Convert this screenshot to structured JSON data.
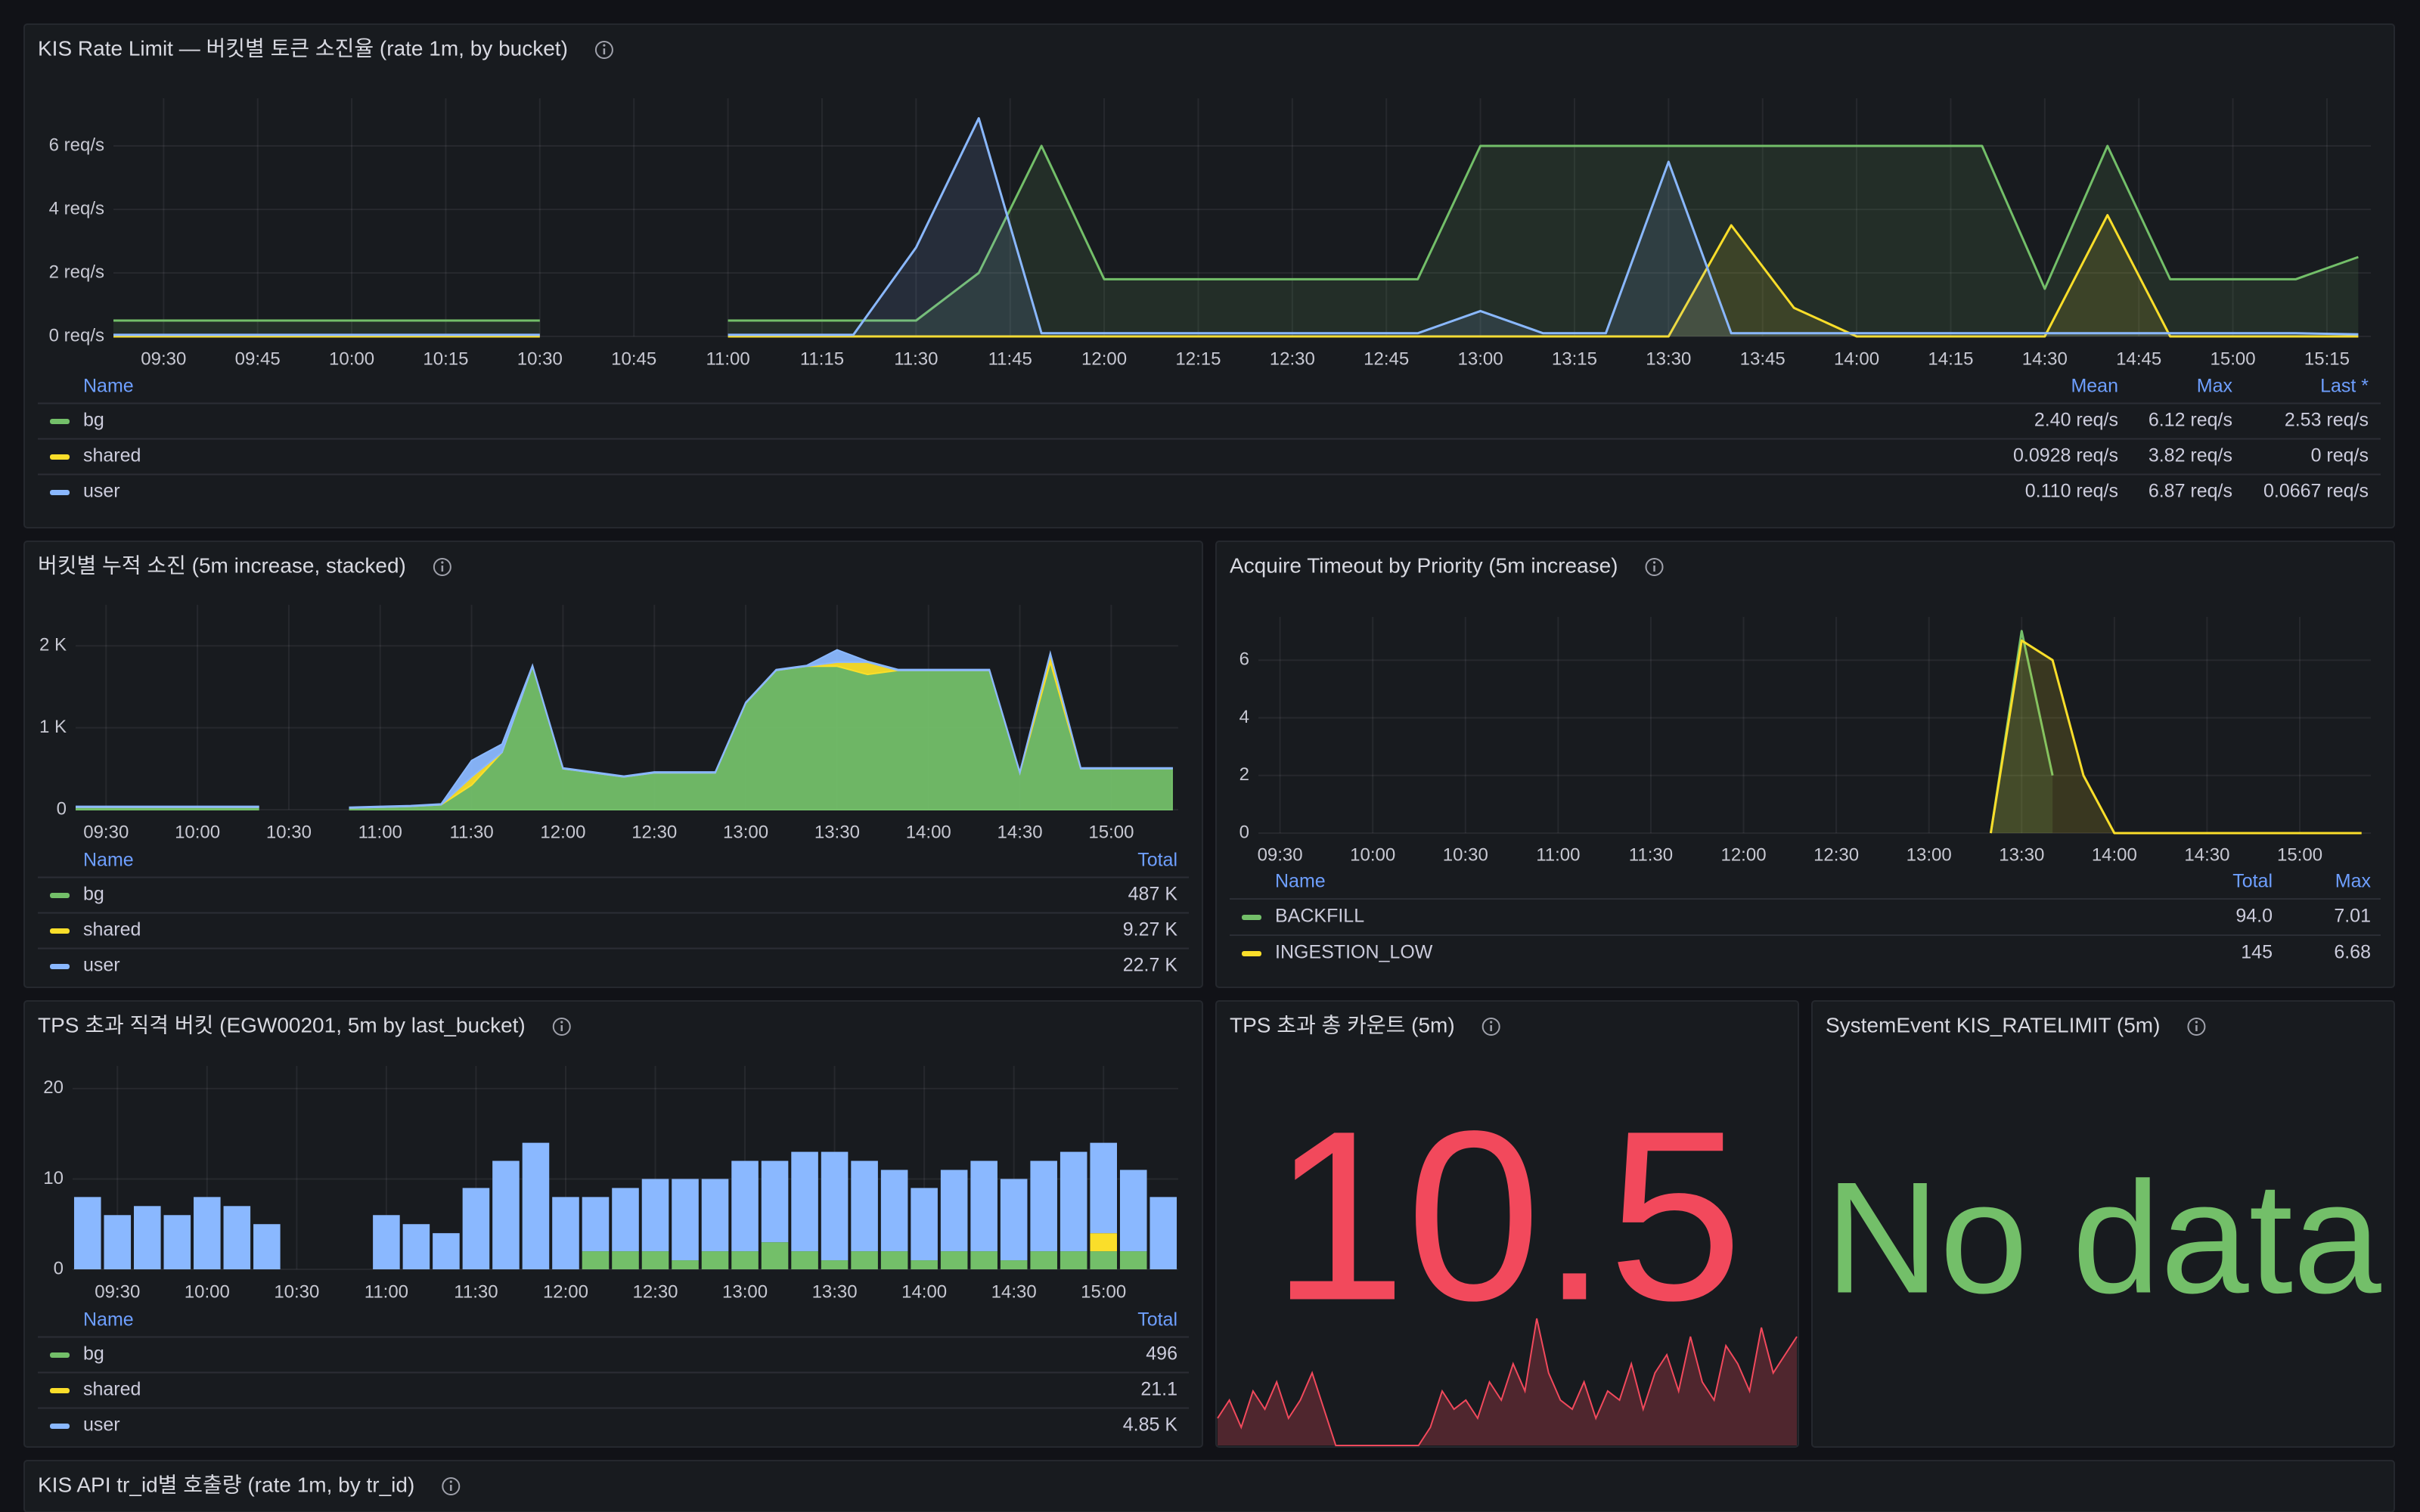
{
  "panels": [
    {
      "title": "KIS Rate Limit — 버킷별 토큰 소진율 (rate 1m, by bucket)",
      "type": "line",
      "fill_opacity": 0.12,
      "x": [
        "09:20",
        "09:30",
        "09:40",
        "09:50",
        "10:00",
        "10:10",
        "10:20",
        "10:30",
        "10:40",
        "10:50",
        "11:00",
        "11:10",
        "11:20",
        "11:30",
        "11:40",
        "11:50",
        "12:00",
        "12:10",
        "12:20",
        "12:30",
        "12:40",
        "12:50",
        "13:00",
        "13:10",
        "13:20",
        "13:30",
        "13:40",
        "13:50",
        "14:00",
        "14:10",
        "14:20",
        "14:30",
        "14:40",
        "14:50",
        "15:00",
        "15:10",
        "15:20"
      ],
      "xlim": [
        "09:22",
        "15:22"
      ],
      "xticks": [
        "09:30",
        "09:45",
        "10:00",
        "10:15",
        "10:30",
        "10:45",
        "11:00",
        "11:15",
        "11:30",
        "11:45",
        "12:00",
        "12:15",
        "12:30",
        "12:45",
        "13:00",
        "13:15",
        "13:30",
        "13:45",
        "14:00",
        "14:15",
        "14:30",
        "14:45",
        "15:00",
        "15:15"
      ],
      "ylim": [
        0,
        7.5
      ],
      "yticks": [
        {
          "value": 0,
          "label": "0 req/s"
        },
        {
          "value": 2,
          "label": "2 req/s"
        },
        {
          "value": 4,
          "label": "4 req/s"
        },
        {
          "value": 6,
          "label": "6 req/s"
        }
      ],
      "legend_name_header": "Name",
      "legend_columns": [
        "Mean",
        "Max",
        "Last *"
      ],
      "series": [
        {
          "name": "bg",
          "color": "#73bf69",
          "legend_values": [
            "2.40 req/s",
            "6.12 req/s",
            "2.53 req/s"
          ],
          "values": [
            0.5,
            0.5,
            0.5,
            0.5,
            0.5,
            0.5,
            0.5,
            0.5,
            null,
            null,
            0.5,
            0.5,
            0.5,
            0.5,
            2,
            6,
            1.8,
            1.8,
            1.8,
            1.8,
            1.8,
            1.8,
            6,
            6,
            6,
            6,
            6,
            6,
            6,
            6,
            6,
            1.5,
            6,
            1.8,
            1.8,
            1.8,
            2.5
          ]
        },
        {
          "name": "shared",
          "color": "#fade2a",
          "legend_values": [
            "0.0928 req/s",
            "3.82 req/s",
            "0 req/s"
          ],
          "values": [
            0,
            0,
            0,
            0,
            0,
            0,
            0,
            0,
            null,
            null,
            0,
            0,
            0,
            0,
            0,
            0,
            0,
            0,
            0,
            0,
            0,
            0,
            0,
            0,
            0,
            0,
            3.5,
            0.9,
            0,
            0,
            0,
            0,
            3.82,
            0,
            0,
            0,
            0
          ]
        },
        {
          "name": "user",
          "color": "#8ab8ff",
          "legend_values": [
            "0.110 req/s",
            "6.87 req/s",
            "0.0667 req/s"
          ],
          "values": [
            0.05,
            0.05,
            0.05,
            0.05,
            0.05,
            0.05,
            0.05,
            0.05,
            null,
            null,
            0.05,
            0.05,
            0.05,
            2.8,
            6.87,
            0.1,
            0.1,
            0.1,
            0.1,
            0.1,
            0.1,
            0.1,
            0.8,
            0.1,
            0.1,
            5.5,
            0.1,
            0.1,
            0.1,
            0.1,
            0.1,
            0.1,
            0.1,
            0.1,
            0.1,
            0.1,
            0.0667
          ]
        }
      ]
    },
    {
      "title": "버킷별 누적 소진 (5m increase, stacked)",
      "type": "stacked-area",
      "x": [
        "09:20",
        "09:30",
        "09:40",
        "09:50",
        "10:00",
        "10:10",
        "10:20",
        "10:30",
        "10:40",
        "10:50",
        "11:00",
        "11:10",
        "11:20",
        "11:30",
        "11:40",
        "11:50",
        "12:00",
        "12:10",
        "12:20",
        "12:30",
        "12:40",
        "12:50",
        "13:00",
        "13:10",
        "13:20",
        "13:30",
        "13:40",
        "13:50",
        "14:00",
        "14:10",
        "14:20",
        "14:30",
        "14:40",
        "14:50",
        "15:00",
        "15:10",
        "15:20"
      ],
      "xlim": [
        "09:20",
        "15:22"
      ],
      "xticks": [
        "09:30",
        "10:00",
        "10:30",
        "11:00",
        "11:30",
        "12:00",
        "12:30",
        "13:00",
        "13:30",
        "14:00",
        "14:30",
        "15:00"
      ],
      "ylim": [
        0,
        2500
      ],
      "yticks": [
        0,
        {
          "value": 1000,
          "label": "1 K"
        },
        {
          "value": 2000,
          "label": "2 K"
        }
      ],
      "legend_name_header": "Name",
      "legend_columns": [
        "Total"
      ],
      "series": [
        {
          "name": "bg",
          "color": "#73bf69",
          "legend_values": [
            "487 K"
          ],
          "values": [
            30,
            30,
            30,
            30,
            30,
            30,
            30,
            null,
            null,
            20,
            30,
            40,
            60,
            300,
            700,
            1750,
            500,
            450,
            400,
            450,
            450,
            450,
            1300,
            1700,
            1750,
            1750,
            1650,
            1700,
            1700,
            1700,
            1700,
            450,
            1800,
            500,
            500,
            500,
            500
          ]
        },
        {
          "name": "shared",
          "color": "#fade2a",
          "legend_values": [
            "9.27 K"
          ],
          "values": [
            0,
            0,
            0,
            0,
            0,
            0,
            0,
            null,
            null,
            0,
            0,
            0,
            0,
            100,
            0,
            0,
            0,
            0,
            0,
            0,
            0,
            0,
            0,
            0,
            0,
            50,
            150,
            0,
            0,
            0,
            0,
            0,
            100,
            0,
            0,
            0,
            0
          ]
        },
        {
          "name": "user",
          "color": "#8ab8ff",
          "legend_values": [
            "22.7 K"
          ],
          "values": [
            10,
            10,
            10,
            10,
            10,
            10,
            10,
            null,
            null,
            10,
            10,
            10,
            10,
            200,
            100,
            10,
            10,
            10,
            10,
            10,
            10,
            10,
            10,
            10,
            10,
            150,
            10,
            10,
            10,
            10,
            10,
            10,
            10,
            10,
            10,
            10,
            10
          ]
        }
      ]
    },
    {
      "title": "Acquire Timeout by Priority (5m increase)",
      "type": "line",
      "fill_opacity": 0.15,
      "x": [
        "09:20",
        "09:30",
        "09:40",
        "09:50",
        "10:00",
        "10:10",
        "10:20",
        "10:30",
        "10:40",
        "10:50",
        "11:00",
        "11:10",
        "11:20",
        "11:30",
        "11:40",
        "11:50",
        "12:00",
        "12:10",
        "12:20",
        "12:30",
        "12:40",
        "12:50",
        "13:00",
        "13:10",
        "13:20",
        "13:30",
        "13:40",
        "13:50",
        "14:00",
        "14:10",
        "14:20",
        "14:30",
        "14:40",
        "14:50",
        "15:00",
        "15:10",
        "15:20"
      ],
      "xlim": [
        "09:23",
        "15:23"
      ],
      "xticks": [
        "09:30",
        "10:00",
        "10:30",
        "11:00",
        "11:30",
        "12:00",
        "12:30",
        "13:00",
        "13:30",
        "14:00",
        "14:30",
        "15:00"
      ],
      "ylim": [
        0,
        7.5
      ],
      "yticks": [
        0,
        2,
        4,
        6
      ],
      "legend_name_header": "Name",
      "legend_columns": [
        "Total",
        "Max"
      ],
      "series": [
        {
          "name": "BACKFILL",
          "color": "#73bf69",
          "legend_values": [
            "94.0",
            "7.01"
          ],
          "values": [
            null,
            null,
            null,
            null,
            null,
            null,
            null,
            null,
            null,
            null,
            null,
            null,
            null,
            null,
            null,
            null,
            null,
            null,
            null,
            null,
            null,
            null,
            null,
            null,
            0,
            7.01,
            2,
            null,
            null,
            null,
            null,
            null,
            null,
            null,
            null,
            null,
            null
          ]
        },
        {
          "name": "INGESTION_LOW",
          "color": "#fade2a",
          "legend_values": [
            "145",
            "6.68"
          ],
          "values": [
            null,
            null,
            null,
            null,
            null,
            null,
            null,
            null,
            null,
            null,
            null,
            null,
            null,
            null,
            null,
            null,
            null,
            null,
            null,
            null,
            null,
            null,
            null,
            null,
            0,
            6.68,
            6,
            2,
            0,
            0,
            0,
            0,
            0,
            0,
            0,
            0,
            0
          ]
        }
      ]
    },
    {
      "title": "TPS 초과 직격 버킷 (EGW00201, 5m by last_bucket)",
      "type": "stacked-bar",
      "x": [
        "09:20",
        "09:30",
        "09:40",
        "09:50",
        "10:00",
        "10:10",
        "10:20",
        "10:30",
        "10:40",
        "10:50",
        "11:00",
        "11:10",
        "11:20",
        "11:30",
        "11:40",
        "11:50",
        "12:00",
        "12:10",
        "12:20",
        "12:30",
        "12:40",
        "12:50",
        "13:00",
        "13:10",
        "13:20",
        "13:30",
        "13:40",
        "13:50",
        "14:00",
        "14:10",
        "14:20",
        "14:30",
        "14:40",
        "14:50",
        "15:00",
        "15:10",
        "15:20"
      ],
      "xlim": [
        "09:15",
        "15:25"
      ],
      "xticks": [
        "09:30",
        "10:00",
        "10:30",
        "11:00",
        "11:30",
        "12:00",
        "12:30",
        "13:00",
        "13:30",
        "14:00",
        "14:30",
        "15:00"
      ],
      "ylim": [
        0,
        22.5
      ],
      "yticks": [
        0,
        10,
        20
      ],
      "legend_name_header": "Name",
      "legend_columns": [
        "Total"
      ],
      "series": [
        {
          "name": "bg",
          "color": "#73bf69",
          "legend_values": [
            "496"
          ],
          "values": [
            0,
            0,
            0,
            0,
            0,
            0,
            0,
            null,
            null,
            null,
            0,
            0,
            0,
            0,
            0,
            0,
            0,
            2,
            2,
            2,
            1,
            2,
            2,
            3,
            2,
            1,
            2,
            2,
            1,
            2,
            2,
            1,
            2,
            2,
            2,
            2,
            0
          ]
        },
        {
          "name": "shared",
          "color": "#fade2a",
          "legend_values": [
            "21.1"
          ],
          "values": [
            0,
            0,
            0,
            0,
            0,
            0,
            0,
            null,
            null,
            null,
            0,
            0,
            0,
            0,
            0,
            0,
            0,
            0,
            0,
            0,
            0,
            0,
            0,
            0,
            0,
            0,
            0,
            0,
            0,
            0,
            0,
            0,
            0,
            0,
            2,
            0,
            0
          ]
        },
        {
          "name": "user",
          "color": "#8ab8ff",
          "legend_values": [
            "4.85 K"
          ],
          "values": [
            8,
            6,
            7,
            6,
            8,
            7,
            5,
            null,
            null,
            null,
            6,
            5,
            4,
            9,
            12,
            14,
            8,
            6,
            7,
            8,
            9,
            8,
            10,
            9,
            11,
            12,
            10,
            9,
            8,
            9,
            10,
            9,
            10,
            11,
            10,
            9,
            8
          ]
        }
      ]
    },
    {
      "title": "TPS 초과 총 카운트 (5m)",
      "type": "stat",
      "value": 10.5,
      "color": "#f2495c",
      "sparkline": [
        3,
        5,
        2,
        6,
        4,
        7,
        3,
        5,
        8,
        4,
        0,
        0,
        0,
        0,
        0,
        0,
        0,
        0,
        2,
        6,
        4,
        5,
        3,
        7,
        5,
        9,
        6,
        14,
        8,
        5,
        4,
        7,
        3,
        6,
        5,
        9,
        4,
        8,
        10,
        6,
        12,
        7,
        5,
        11,
        9,
        6,
        13,
        8,
        10,
        12
      ]
    },
    {
      "title": "SystemEvent KIS_RATELIMIT (5m)",
      "type": "stat-text",
      "text": "No data",
      "color": "#73bf69"
    },
    {
      "title": "KIS API tr_id별 호출량 (rate 1m, by tr_id)",
      "type": "header"
    }
  ]
}
